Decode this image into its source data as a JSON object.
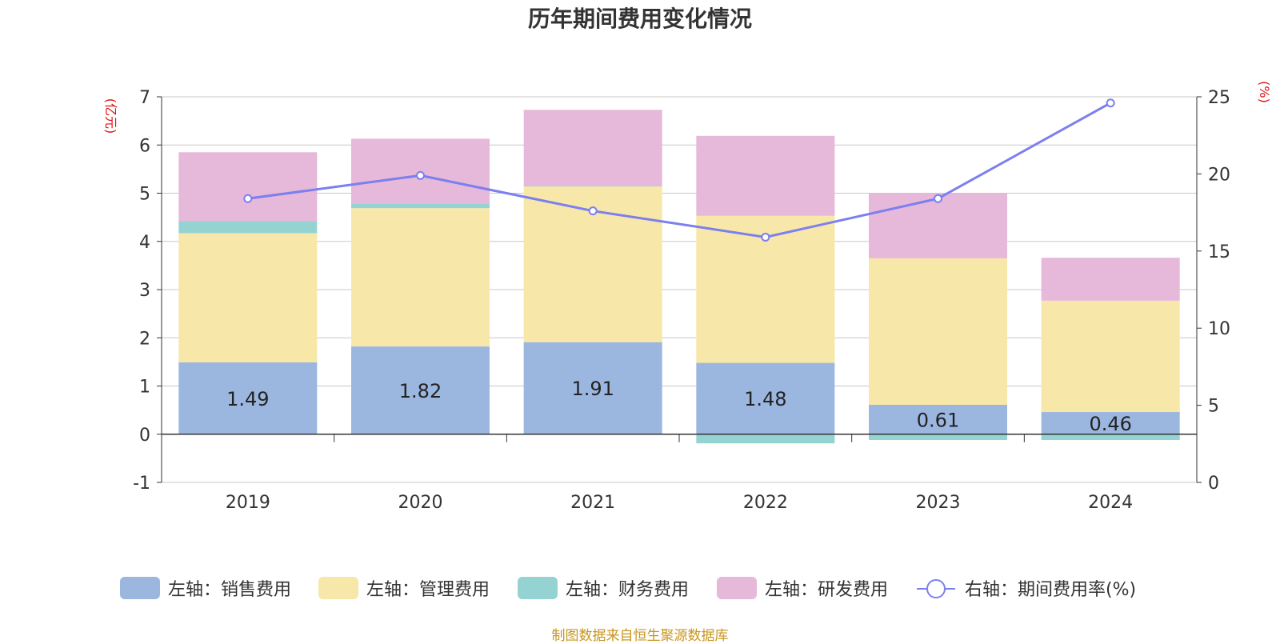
{
  "chart_data": {
    "type": "bar",
    "title": "历年期间费用变化情况",
    "categories": [
      "2019",
      "2020",
      "2021",
      "2022",
      "2023",
      "2024"
    ],
    "left_axis": {
      "label": "(亿元)",
      "ylim": [
        -1,
        7
      ],
      "ticks": [
        -1,
        0,
        1,
        2,
        3,
        4,
        5,
        6,
        7
      ]
    },
    "right_axis": {
      "label": "(%)",
      "ylim": [
        0,
        25
      ],
      "ticks": [
        0,
        5,
        10,
        15,
        20,
        25
      ]
    },
    "series": [
      {
        "name": "左轴：销售费用",
        "kind": "bar",
        "color": "#9bb7e0",
        "values": [
          1.49,
          1.82,
          1.91,
          1.48,
          0.61,
          0.46
        ],
        "show_labels": true
      },
      {
        "name": "左轴：管理费用",
        "kind": "bar",
        "color": "#f7e7a8",
        "values": [
          2.68,
          2.87,
          3.23,
          3.05,
          3.04,
          2.31
        ],
        "show_labels": false
      },
      {
        "name": "左轴：财务费用",
        "kind": "bar",
        "color": "#95d3d3",
        "values": [
          0.25,
          0.1,
          0.01,
          -0.19,
          -0.12,
          -0.12
        ],
        "show_labels": false
      },
      {
        "name": "左轴：研发费用",
        "kind": "bar",
        "color": "#e6b8d9",
        "values": [
          1.43,
          1.34,
          1.58,
          1.66,
          1.35,
          0.89
        ],
        "show_labels": false
      },
      {
        "name": "右轴：期间费用率(%)",
        "kind": "line",
        "axis": "right",
        "color": "#7b7fef",
        "values": [
          18.4,
          19.9,
          17.6,
          15.9,
          18.4,
          24.6
        ]
      }
    ],
    "legend_position": "bottom"
  },
  "source_note": "制图数据来自恒生聚源数据库"
}
